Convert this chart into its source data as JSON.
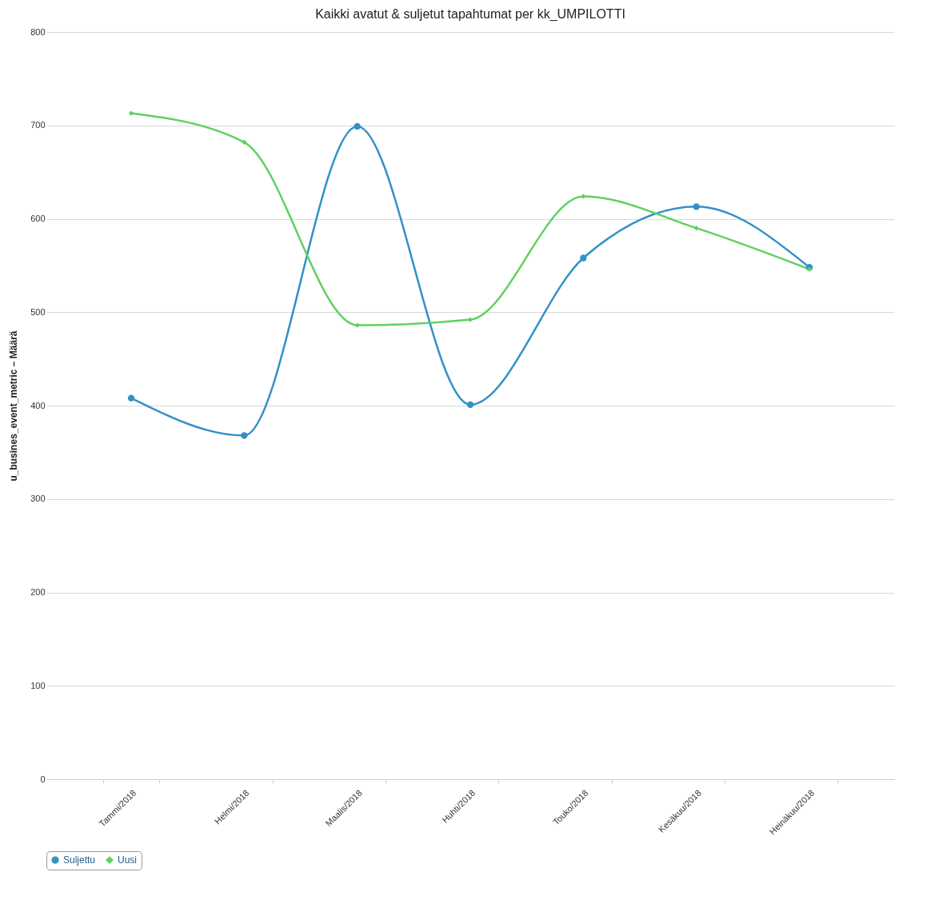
{
  "chart_data": {
    "type": "line",
    "title": "Kaikki avatut & suljetut tapahtumat per kk_UMPILOTTI",
    "ylabel": "u_busines_event_metric – Määrä",
    "categories": [
      "Tammi/2018",
      "Helmi/2018",
      "Maalis/2018",
      "Huhti/2018",
      "Touko/2018",
      "Kesäkuu/2018",
      "Heinäkuu/2018"
    ],
    "series": [
      {
        "name": "Suljettu",
        "color": "#3391c8",
        "marker": "circle",
        "values": [
          408,
          368,
          699,
          401,
          558,
          613,
          548
        ]
      },
      {
        "name": "Uusi",
        "color": "#5fd15f",
        "marker": "diamond",
        "values": [
          713,
          682,
          486,
          492,
          624,
          590,
          546
        ]
      }
    ],
    "ylim": [
      0,
      800
    ],
    "yticks": [
      0,
      100,
      200,
      300,
      400,
      500,
      600,
      700,
      800
    ],
    "grid": "y",
    "legend": "bottom",
    "line_style": "solid"
  }
}
